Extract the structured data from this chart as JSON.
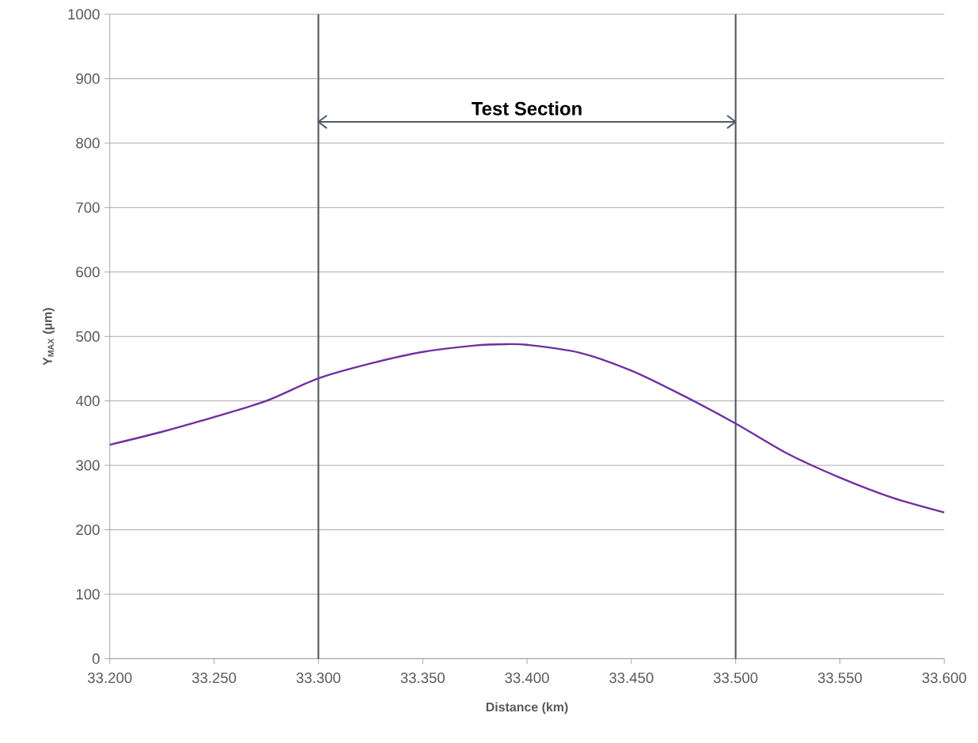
{
  "chart_data": {
    "type": "line",
    "xlabel": "Distance (km)",
    "ylabel": "Y$_{MAX}$ (µm)",
    "x": [
      33.2,
      33.225,
      33.25,
      33.275,
      33.3,
      33.325,
      33.35,
      33.375,
      33.39,
      33.4,
      33.425,
      33.45,
      33.475,
      33.5,
      33.525,
      33.55,
      33.575,
      33.6
    ],
    "series": [
      {
        "color": "#7030a0",
        "values": [
          332,
          352,
          375,
          400,
          435,
          458,
          476,
          486,
          488,
          487,
          475,
          447,
          408,
          365,
          318,
          281,
          250,
          227
        ]
      }
    ],
    "xlim": [
      33.2,
      33.6
    ],
    "xticks": [
      {
        "value": 33.2,
        "label": "33.200"
      },
      {
        "value": 33.25,
        "label": "33.250"
      },
      {
        "value": 33.3,
        "label": "33.300"
      },
      {
        "value": 33.35,
        "label": "33.350"
      },
      {
        "value": 33.4,
        "label": "33.400"
      },
      {
        "value": 33.45,
        "label": "33.450"
      },
      {
        "value": 33.5,
        "label": "33.500"
      },
      {
        "value": 33.55,
        "label": "33.550"
      },
      {
        "value": 33.6,
        "label": "33.600"
      }
    ],
    "ylim": [
      0,
      1000
    ],
    "yticks": [
      0,
      100,
      200,
      300,
      400,
      500,
      600,
      700,
      800,
      900,
      1000
    ],
    "grid": "y",
    "marker": "none",
    "line_style": "solid",
    "ref_lines": [
      {
        "axis": "x",
        "value": 33.3,
        "color": "#555a64"
      },
      {
        "axis": "x",
        "value": 33.5,
        "color": "#555a64"
      }
    ],
    "annotations": [
      "Test Section"
    ]
  }
}
